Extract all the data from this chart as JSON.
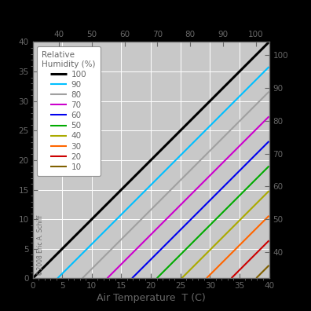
{
  "xlabel_bottom": "Air Temperature  T (C)",
  "x_min": 0,
  "x_max": 40,
  "y_min": 0,
  "y_max": 40,
  "x_top_min": 32,
  "x_top_max": 104,
  "y_right_min": 32,
  "y_right_max": 104,
  "rh_values": [
    100,
    90,
    80,
    70,
    60,
    50,
    40,
    30,
    20,
    10
  ],
  "rh_colors": [
    "#000000",
    "#00bfff",
    "#a0a0a0",
    "#cc00cc",
    "#0000ee",
    "#00aa00",
    "#aaaa00",
    "#ff6600",
    "#cc0000",
    "#806000"
  ],
  "rh_linewidths": [
    2.2,
    1.5,
    1.5,
    1.5,
    1.5,
    1.5,
    1.5,
    1.5,
    1.5,
    1.5
  ],
  "bg_color": "#000000",
  "plot_bg_color": "#c8c8c8",
  "grid_color": "#ffffff",
  "label_color": "#686868",
  "legend_title": "Relative\nHumidity (%)",
  "watermark": "©2008 Eric A. Schiff",
  "xticks_bottom": [
    0,
    5,
    10,
    15,
    20,
    25,
    30,
    35,
    40
  ],
  "xticks_top": [
    40,
    50,
    60,
    70,
    80,
    90,
    100
  ],
  "yticks_left": [
    0,
    5,
    10,
    15,
    20,
    25,
    30,
    35,
    40
  ],
  "yticks_right": [
    40,
    50,
    60,
    70,
    80,
    90,
    100
  ],
  "dew_point_factor": 0.42
}
